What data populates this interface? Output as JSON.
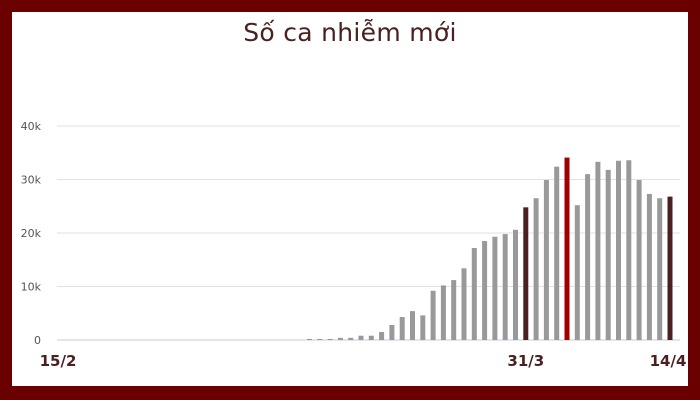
{
  "colors": {
    "frame": "#6b0000",
    "bar": "#999999",
    "highlight_dark": "#4a2020",
    "highlight_red": "#a00000",
    "title": "#4a2020"
  },
  "chart_data": {
    "type": "bar",
    "title": "Số ca nhiễm mới",
    "xlabel": "",
    "ylabel": "",
    "ylim": [
      0,
      40000
    ],
    "grid": true,
    "yticks": [
      0,
      10000,
      20000,
      30000,
      40000
    ],
    "ytick_labels": [
      "0",
      "10k",
      "20k",
      "30k",
      "40k"
    ],
    "xtick_labels": [
      {
        "category": "15/2",
        "label": "15/2"
      },
      {
        "category": "31/3",
        "label": "31/3"
      },
      {
        "category": "14/4",
        "label": "14/4"
      }
    ],
    "categories": [
      "15/2",
      "16/2",
      "17/2",
      "18/2",
      "19/2",
      "20/2",
      "21/2",
      "22/2",
      "23/2",
      "24/2",
      "25/2",
      "26/2",
      "27/2",
      "28/2",
      "29/2",
      "1/3",
      "2/3",
      "3/3",
      "4/3",
      "5/3",
      "6/3",
      "7/3",
      "8/3",
      "9/3",
      "10/3",
      "11/3",
      "12/3",
      "13/3",
      "14/3",
      "15/3",
      "16/3",
      "17/3",
      "18/3",
      "19/3",
      "20/3",
      "21/3",
      "22/3",
      "23/3",
      "24/3",
      "25/3",
      "26/3",
      "27/3",
      "28/3",
      "29/3",
      "30/3",
      "31/3",
      "1/4",
      "2/4",
      "3/4",
      "4/4",
      "5/4",
      "6/4",
      "7/4",
      "8/4",
      "9/4",
      "10/4",
      "11/4",
      "12/4",
      "13/4",
      "14/4"
    ],
    "values": [
      0,
      0,
      0,
      0,
      0,
      0,
      0,
      0,
      0,
      0,
      0,
      0,
      0,
      0,
      0,
      0,
      0,
      0,
      0,
      0,
      0,
      0,
      0,
      0,
      200,
      200,
      200,
      400,
      400,
      800,
      800,
      1500,
      2800,
      4300,
      5400,
      4600,
      9200,
      10200,
      11200,
      13400,
      17200,
      18500,
      19300,
      19800,
      20600,
      24800,
      26500,
      29900,
      32400,
      34100,
      25200,
      31000,
      33300,
      31800,
      33500,
      33600,
      29900,
      27300,
      26500,
      26800
    ],
    "highlights": [
      {
        "category": "31/3",
        "color": "#4a2020"
      },
      {
        "category": "4/4",
        "color": "#a00000"
      },
      {
        "category": "14/4",
        "color": "#4a2020"
      }
    ]
  }
}
